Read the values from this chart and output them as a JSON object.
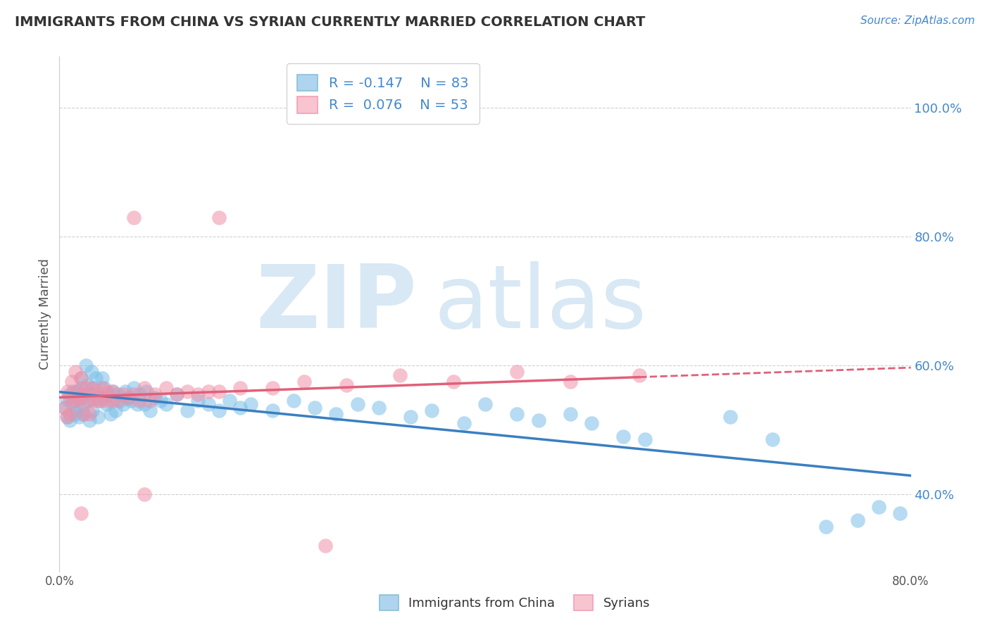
{
  "title": "IMMIGRANTS FROM CHINA VS SYRIAN CURRENTLY MARRIED CORRELATION CHART",
  "source_text": "Source: ZipAtlas.com",
  "ylabel": "Currently Married",
  "xlim": [
    0.0,
    0.8
  ],
  "ylim": [
    0.28,
    1.08
  ],
  "yticks": [
    0.4,
    0.6,
    0.8,
    1.0
  ],
  "ytick_labels": [
    "40.0%",
    "60.0%",
    "80.0%",
    "100.0%"
  ],
  "china_R": -0.147,
  "china_N": 83,
  "syrian_R": 0.076,
  "syrian_N": 53,
  "china_color": "#7bbfe8",
  "china_fill": "#aed4ef",
  "syrian_color": "#f090a8",
  "syrian_fill": "#f8c4cf",
  "china_line_color": "#3a7fc1",
  "syrian_line_color": "#e0607a",
  "background_color": "#ffffff",
  "grid_color": "#d0d0d0",
  "legend_china_label": "Immigrants from China",
  "legend_syrian_label": "Syrians",
  "china_scatter_x": [
    0.005,
    0.007,
    0.008,
    0.01,
    0.01,
    0.012,
    0.013,
    0.015,
    0.015,
    0.016,
    0.017,
    0.018,
    0.02,
    0.02,
    0.021,
    0.022,
    0.023,
    0.025,
    0.026,
    0.027,
    0.028,
    0.03,
    0.03,
    0.031,
    0.032,
    0.034,
    0.035,
    0.036,
    0.038,
    0.04,
    0.04,
    0.042,
    0.044,
    0.046,
    0.048,
    0.05,
    0.051,
    0.053,
    0.055,
    0.057,
    0.06,
    0.062,
    0.064,
    0.067,
    0.07,
    0.073,
    0.075,
    0.08,
    0.082,
    0.085,
    0.09,
    0.095,
    0.1,
    0.11,
    0.12,
    0.13,
    0.14,
    0.15,
    0.16,
    0.17,
    0.18,
    0.2,
    0.22,
    0.24,
    0.26,
    0.28,
    0.3,
    0.33,
    0.35,
    0.38,
    0.4,
    0.43,
    0.45,
    0.48,
    0.5,
    0.53,
    0.55,
    0.63,
    0.67,
    0.72,
    0.75,
    0.77,
    0.79
  ],
  "china_scatter_y": [
    0.535,
    0.548,
    0.52,
    0.555,
    0.515,
    0.54,
    0.56,
    0.545,
    0.525,
    0.56,
    0.53,
    0.52,
    0.55,
    0.58,
    0.565,
    0.54,
    0.525,
    0.6,
    0.57,
    0.545,
    0.515,
    0.59,
    0.555,
    0.53,
    0.565,
    0.58,
    0.55,
    0.52,
    0.545,
    0.58,
    0.55,
    0.565,
    0.54,
    0.555,
    0.525,
    0.56,
    0.545,
    0.53,
    0.555,
    0.545,
    0.54,
    0.56,
    0.55,
    0.545,
    0.565,
    0.54,
    0.555,
    0.54,
    0.56,
    0.53,
    0.55,
    0.545,
    0.54,
    0.555,
    0.53,
    0.545,
    0.54,
    0.53,
    0.545,
    0.535,
    0.54,
    0.53,
    0.545,
    0.535,
    0.525,
    0.54,
    0.535,
    0.52,
    0.53,
    0.51,
    0.54,
    0.525,
    0.515,
    0.525,
    0.51,
    0.49,
    0.485,
    0.52,
    0.485,
    0.35,
    0.36,
    0.38,
    0.37
  ],
  "syrian_scatter_x": [
    0.005,
    0.007,
    0.008,
    0.01,
    0.01,
    0.012,
    0.014,
    0.015,
    0.016,
    0.018,
    0.02,
    0.021,
    0.022,
    0.025,
    0.027,
    0.028,
    0.03,
    0.032,
    0.035,
    0.037,
    0.04,
    0.042,
    0.045,
    0.048,
    0.05,
    0.055,
    0.06,
    0.065,
    0.07,
    0.075,
    0.08,
    0.085,
    0.09,
    0.1,
    0.11,
    0.12,
    0.13,
    0.14,
    0.15,
    0.17,
    0.2,
    0.23,
    0.27,
    0.32,
    0.37,
    0.43,
    0.48,
    0.545,
    0.07,
    0.15,
    0.08,
    0.02,
    0.25
  ],
  "syrian_scatter_y": [
    0.535,
    0.52,
    0.56,
    0.55,
    0.525,
    0.575,
    0.545,
    0.59,
    0.56,
    0.545,
    0.58,
    0.555,
    0.525,
    0.565,
    0.545,
    0.525,
    0.565,
    0.545,
    0.56,
    0.545,
    0.565,
    0.545,
    0.56,
    0.545,
    0.56,
    0.545,
    0.555,
    0.55,
    0.555,
    0.545,
    0.565,
    0.545,
    0.555,
    0.565,
    0.555,
    0.56,
    0.555,
    0.56,
    0.56,
    0.565,
    0.565,
    0.575,
    0.57,
    0.585,
    0.575,
    0.59,
    0.575,
    0.585,
    0.83,
    0.83,
    0.4,
    0.37,
    0.32
  ]
}
